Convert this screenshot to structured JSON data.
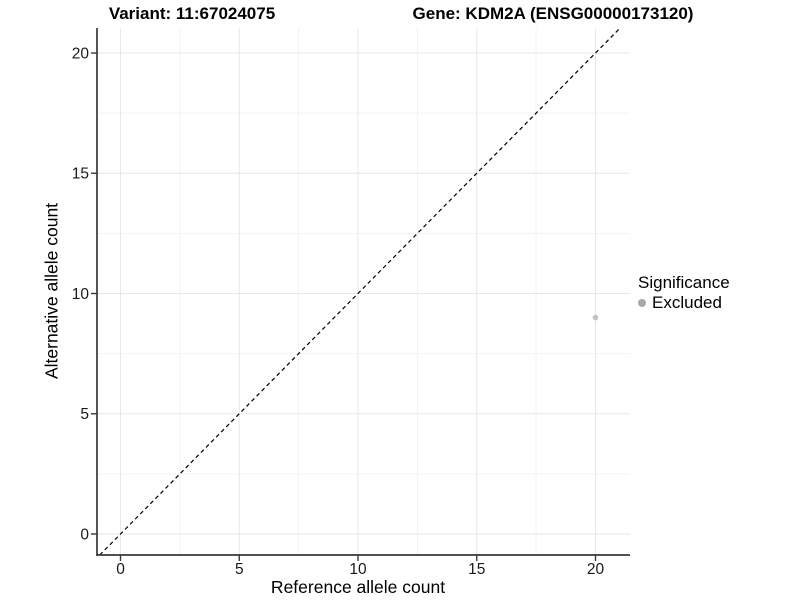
{
  "titles": {
    "variant": "Variant: 11:67024075",
    "gene": "Gene: KDM2A (ENSG00000173120)"
  },
  "chart_data": {
    "type": "scatter",
    "xlabel": "Reference allele count",
    "ylabel": "Alternative allele count",
    "x_ticks": [
      0,
      5,
      10,
      15,
      20
    ],
    "y_ticks": [
      0,
      5,
      10,
      15,
      20
    ],
    "xlim": [
      -1,
      21.5
    ],
    "ylim": [
      -0.9,
      21
    ],
    "grid": "major+minor",
    "gridline_major_color": "#e7e7e7",
    "gridline_minor_color": "#f2f2f2",
    "points": [
      {
        "x": 20,
        "y": 9,
        "series": "Excluded"
      }
    ],
    "point_color": "#c3c3c3",
    "point_radius": 2.8,
    "reference_line": {
      "kind": "identity",
      "style": "dashed",
      "color": "#000000"
    },
    "legend": {
      "title": "Significance",
      "position": "right",
      "entries": [
        {
          "label": "Excluded",
          "color": "#a8a8a8",
          "marker": "circle"
        }
      ]
    }
  }
}
